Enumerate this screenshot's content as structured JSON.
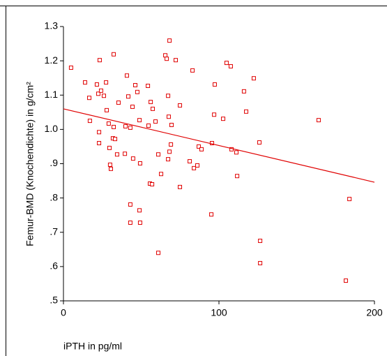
{
  "chart_data": {
    "type": "scatter",
    "xlabel": "iPTH in pg/ml",
    "ylabel": "Femur-BMD (Knochendichte) in g/cm²",
    "xlim": [
      0,
      200
    ],
    "ylim": [
      0.5,
      1.3
    ],
    "xticks": [
      0,
      100,
      200
    ],
    "yticks": [
      {
        "value": 0.5,
        "label": ".5"
      },
      {
        "value": 0.6,
        "label": ".6"
      },
      {
        "value": 0.7,
        "label": ".7"
      },
      {
        "value": 0.8,
        "label": ".8"
      },
      {
        "value": 0.9,
        "label": ".9"
      },
      {
        "value": 1.0,
        "label": "1.0"
      },
      1.1,
      1.2,
      1.3
    ],
    "color": "#e00000",
    "x": [
      4.9,
      13.9,
      16.6,
      17.0,
      21.5,
      22.4,
      23.3,
      24.2,
      26.0,
      27.4,
      27.8,
      29.1,
      32.3,
      32.3,
      31.8,
      29.6,
      22.9,
      22.9,
      30.0,
      30.5,
      33.2,
      34.5,
      35.4,
      39.5,
      39.9,
      40.8,
      41.7,
      43.0,
      44.4,
      44.8,
      46.2,
      47.5,
      48.9,
      49.3,
      49.3,
      48.9,
      43.0,
      43.0,
      54.3,
      54.7,
      55.6,
      57.0,
      56.1,
      57.4,
      59.2,
      61.0,
      62.8,
      65.5,
      66.4,
      68.2,
      67.3,
      67.7,
      68.2,
      67.3,
      69.1,
      69.5,
      72.2,
      74.9,
      74.9,
      61.0,
      81.2,
      83.0,
      83.9,
      86.1,
      87.0,
      88.8,
      95.5,
      96.9,
      97.3,
      95.1,
      104.9,
      107.6,
      108.1,
      111.2,
      102.7,
      116.1,
      117.5,
      122.4,
      111.7,
      126.0,
      126.5,
      126.5,
      164.1,
      183.9,
      181.6
    ],
    "values": [
      1.18,
      1.137,
      1.092,
      1.025,
      1.131,
      1.104,
      1.202,
      1.113,
      1.098,
      1.137,
      1.056,
      1.017,
      1.219,
      1.007,
      0.974,
      0.946,
      0.992,
      0.96,
      0.897,
      0.885,
      0.972,
      0.927,
      1.078,
      0.929,
      1.009,
      1.157,
      1.096,
      1.005,
      1.066,
      0.915,
      1.129,
      1.109,
      1.027,
      0.901,
      0.728,
      0.764,
      0.781,
      0.728,
      1.127,
      1.011,
      0.842,
      0.84,
      1.08,
      1.06,
      1.023,
      0.927,
      0.87,
      1.216,
      1.206,
      1.259,
      1.098,
      1.037,
      0.935,
      0.913,
      0.956,
      1.013,
      1.202,
      1.07,
      0.832,
      0.64,
      0.907,
      1.172,
      0.887,
      0.895,
      0.95,
      0.942,
      0.96,
      1.043,
      1.131,
      0.752,
      1.194,
      1.184,
      0.942,
      0.933,
      1.031,
      1.111,
      1.052,
      1.149,
      0.864,
      0.962,
      0.675,
      0.61,
      1.027,
      0.797,
      0.559
    ],
    "fit_line": {
      "x": [
        0,
        200
      ],
      "y": [
        1.06,
        0.846
      ],
      "color": "#e00000"
    }
  }
}
